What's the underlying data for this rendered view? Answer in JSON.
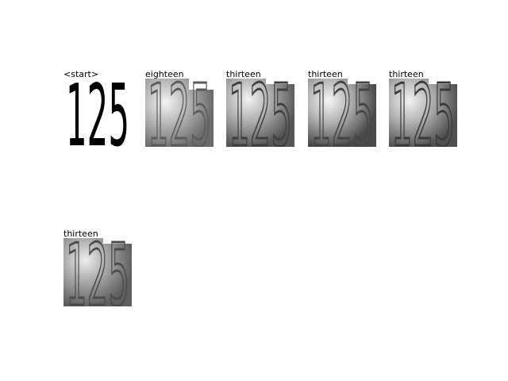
{
  "panels": [
    {
      "caption": "<start>",
      "digits": "125",
      "style": "sharp"
    },
    {
      "caption": "eighteen",
      "digits": "125",
      "style": "noisy"
    },
    {
      "caption": "thirteen",
      "digits": "125",
      "style": "noisy"
    },
    {
      "caption": "thirteen",
      "digits": "125",
      "style": "noisy"
    },
    {
      "caption": "thirteen",
      "digits": "125",
      "style": "noisy"
    },
    {
      "caption": "thirteen",
      "digits": "125",
      "style": "noisy"
    }
  ]
}
